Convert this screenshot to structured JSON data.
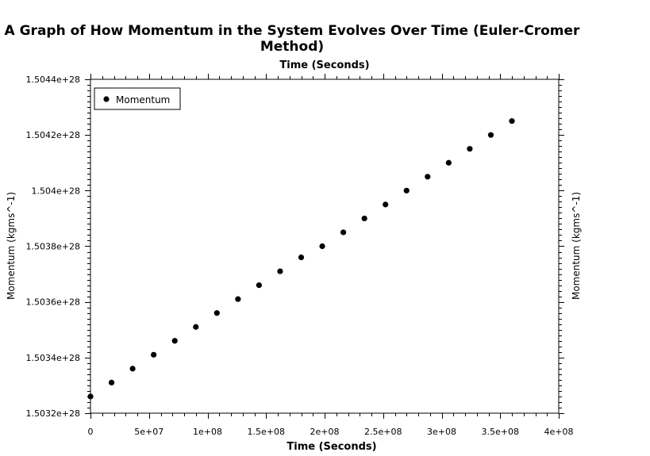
{
  "chart_data": {
    "type": "scatter",
    "title_lines": [
      "A Graph of How Momentum in the System Evolves Over Time (Euler-Cromer",
      "Method)"
    ],
    "xlabel": "Time (Seconds)",
    "xlabel_top": "Time (Seconds)",
    "ylabel": "Momentum (kgms^-1)",
    "ylabel_right": "Momentum (kgms^-1)",
    "xlim": [
      0,
      400000000
    ],
    "ylim": [
      1.5032e+28,
      1.5044e+28
    ],
    "x_tick_values": [
      0,
      50000000,
      100000000,
      150000000,
      200000000,
      250000000,
      300000000,
      350000000,
      400000000
    ],
    "x_tick_labels": [
      "0",
      "5e+07",
      "1e+08",
      "1.5e+08",
      "2e+08",
      "2.5e+08",
      "3e+08",
      "3.5e+08",
      "4e+08"
    ],
    "y_tick_values": [
      1.5032e+28,
      1.5034e+28,
      1.5036e+28,
      1.5038e+28,
      1.504e+28,
      1.5042e+28,
      1.5044e+28
    ],
    "y_tick_labels": [
      "1.5032e+28",
      "1.5034e+28",
      "1.5036e+28",
      "1.5038e+28",
      "1.504e+28",
      "1.5042e+28",
      "1.5044e+28"
    ],
    "grid": false,
    "legend_position": "top-left",
    "series": [
      {
        "name": "Momentum",
        "color": "#000000",
        "marker": "circle",
        "x": [
          0,
          18000000,
          36000000,
          54000000,
          72000000,
          90000000,
          108000000,
          126000000,
          144000000,
          162000000,
          180000000,
          198000000,
          216000000,
          234000000,
          252000000,
          270000000,
          288000000,
          306000000,
          324000000,
          342000000,
          360000000
        ],
        "y": [
          1.50326e+28,
          1.50331e+28,
          1.50336e+28,
          1.50341e+28,
          1.50346e+28,
          1.50351e+28,
          1.50356e+28,
          1.50361e+28,
          1.50366e+28,
          1.50371e+28,
          1.50376e+28,
          1.5038e+28,
          1.50385e+28,
          1.5039e+28,
          1.50395e+28,
          1.504e+28,
          1.50405e+28,
          1.5041e+28,
          1.50415e+28,
          1.5042e+28,
          1.50425e+28
        ]
      }
    ]
  }
}
